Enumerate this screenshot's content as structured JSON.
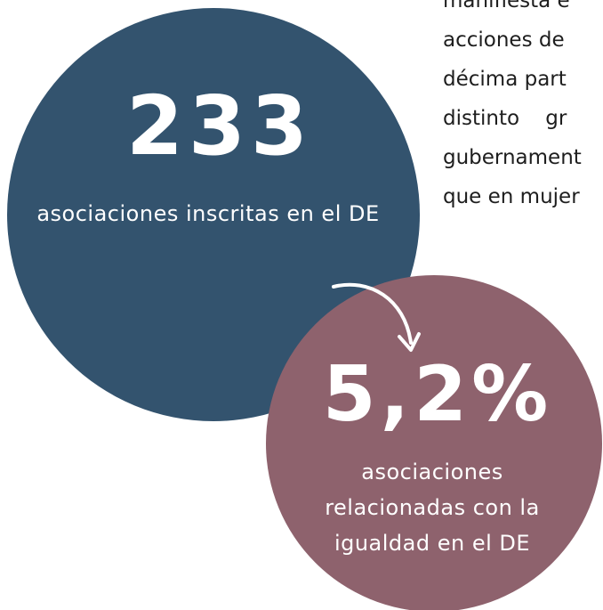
{
  "stat_1": {
    "value": "233",
    "caption": "asociaciones inscritas en el DE"
  },
  "stat_2": {
    "value": "5,2%",
    "caption_lines": [
      "asociaciones",
      "relacionadas con la",
      "igualdad en el DE"
    ]
  },
  "side_text_lines": [
    "manifiesta e",
    "acciones de",
    "décima part",
    "distinto    gr",
    "gubernament",
    "que en mujer"
  ]
}
